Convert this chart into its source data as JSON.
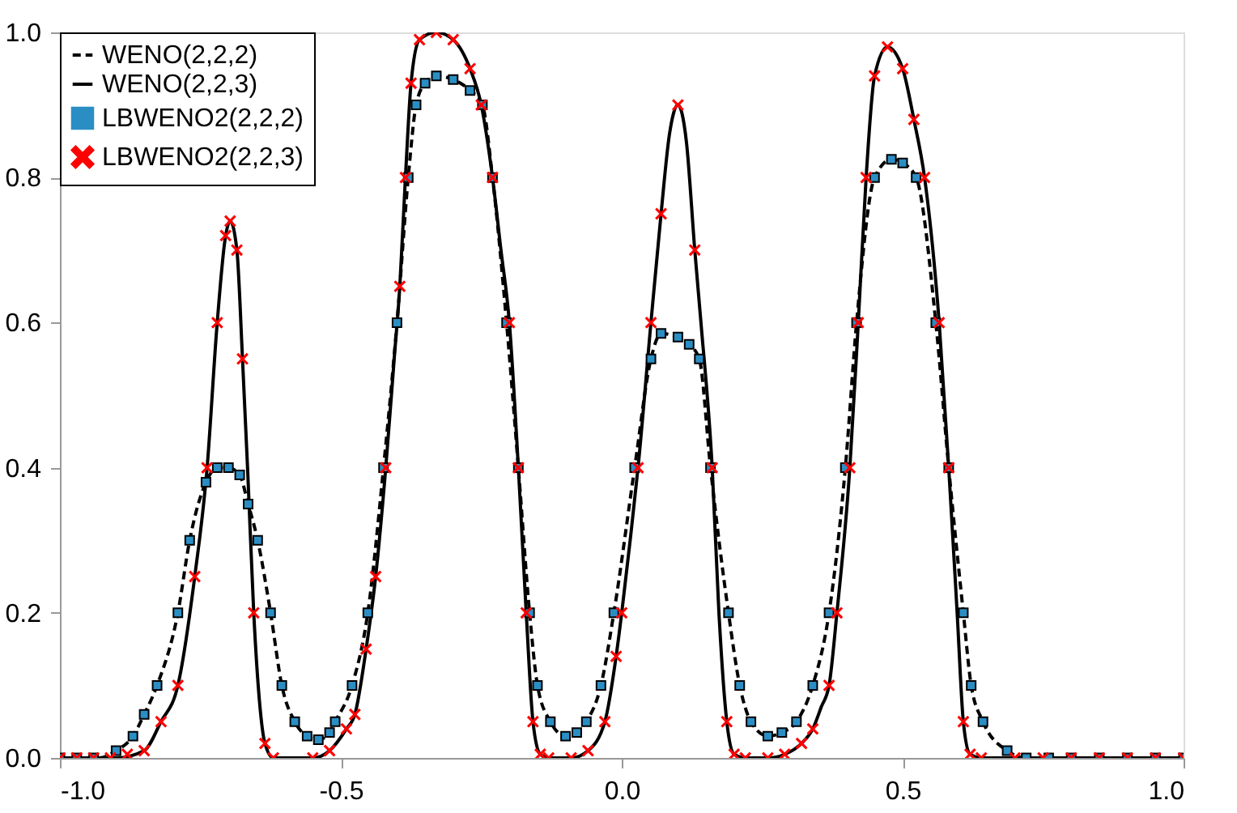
{
  "chart_data": {
    "type": "line",
    "legend": "top left",
    "grid": false,
    "xlim": [
      -1.0,
      1.0
    ],
    "ylim": [
      0.0,
      1.0
    ],
    "xticks": [
      {
        "value": -1.0,
        "label": "-1.0"
      },
      {
        "value": -0.5,
        "label": "-0.5"
      },
      {
        "value": 0.0,
        "label": "0.0"
      },
      {
        "value": 0.5,
        "label": "0.5"
      },
      {
        "value": 1.0,
        "label": "1.0"
      }
    ],
    "yticks": [
      {
        "value": 0.0,
        "label": "0.0"
      },
      {
        "value": 0.2,
        "label": "0.2"
      },
      {
        "value": 0.4,
        "label": "0.4"
      },
      {
        "value": 0.6,
        "label": "0.6"
      },
      {
        "value": 0.8,
        "label": "0.8"
      },
      {
        "value": 1.0,
        "label": "1.0"
      }
    ],
    "series": [
      {
        "name": "WENO(2,2,2)",
        "line_style": "dashed",
        "marker": "none",
        "color": "#000000",
        "x": [
          -1.0,
          -0.93,
          -0.9,
          -0.87,
          -0.85,
          -0.827,
          -0.79,
          -0.769,
          -0.74,
          -0.72,
          -0.7,
          -0.68,
          -0.665,
          -0.648,
          -0.625,
          -0.605,
          -0.582,
          -0.56,
          -0.54,
          -0.52,
          -0.51,
          -0.48,
          -0.452,
          -0.424,
          -0.4,
          -0.38,
          -0.366,
          -0.35,
          -0.33,
          -0.3,
          -0.27,
          -0.248,
          -0.23,
          -0.205,
          -0.184,
          -0.164,
          -0.15,
          -0.127,
          -0.1,
          -0.08,
          -0.063,
          -0.037,
          -0.014,
          0.023,
          0.052,
          0.07,
          0.1,
          0.12,
          0.138,
          0.158,
          0.19,
          0.21,
          0.23,
          0.26,
          0.285,
          0.311,
          0.34,
          0.369,
          0.398,
          0.418,
          0.45,
          0.48,
          0.5,
          0.524,
          0.559,
          0.582,
          0.608,
          0.622,
          0.643,
          0.686,
          0.72,
          1.0
        ],
        "values": [
          0,
          0,
          0.01,
          0.03,
          0.06,
          0.1,
          0.2,
          0.3,
          0.38,
          0.4,
          0.4,
          0.39,
          0.35,
          0.3,
          0.2,
          0.1,
          0.05,
          0.03,
          0.025,
          0.035,
          0.05,
          0.1,
          0.2,
          0.4,
          0.6,
          0.8,
          0.9,
          0.93,
          0.94,
          0.935,
          0.92,
          0.9,
          0.8,
          0.6,
          0.4,
          0.2,
          0.1,
          0.05,
          0.03,
          0.035,
          0.05,
          0.1,
          0.2,
          0.4,
          0.55,
          0.585,
          0.58,
          0.57,
          0.55,
          0.4,
          0.2,
          0.1,
          0.05,
          0.03,
          0.035,
          0.05,
          0.1,
          0.2,
          0.4,
          0.6,
          0.8,
          0.825,
          0.82,
          0.8,
          0.6,
          0.4,
          0.2,
          0.1,
          0.05,
          0.01,
          0,
          0
        ]
      },
      {
        "name": "WENO(2,2,3)",
        "line_style": "solid",
        "marker": "none",
        "color": "#000000",
        "x": [
          -1.0,
          -0.9,
          -0.85,
          -0.82,
          -0.79,
          -0.76,
          -0.738,
          -0.72,
          -0.705,
          -0.697,
          -0.685,
          -0.675,
          -0.666,
          -0.655,
          -0.645,
          -0.635,
          -0.62,
          -0.55,
          -0.52,
          -0.49,
          -0.475,
          -0.455,
          -0.438,
          -0.42,
          -0.405,
          -0.395,
          -0.385,
          -0.375,
          -0.36,
          -0.33,
          -0.3,
          -0.27,
          -0.25,
          -0.23,
          -0.215,
          -0.2,
          -0.184,
          -0.17,
          -0.158,
          -0.145,
          -0.13,
          -0.09,
          -0.06,
          -0.03,
          -0.01,
          0.0,
          0.015,
          0.029,
          0.052,
          0.07,
          0.085,
          0.1,
          0.115,
          0.13,
          0.141,
          0.161,
          0.173,
          0.187,
          0.2,
          0.22,
          0.26,
          0.29,
          0.32,
          0.34,
          0.355,
          0.369,
          0.383,
          0.406,
          0.421,
          0.435,
          0.45,
          0.473,
          0.5,
          0.52,
          0.539,
          0.565,
          0.582,
          0.597,
          0.608,
          0.62,
          0.64,
          1.0
        ],
        "values": [
          0,
          0,
          0.01,
          0.05,
          0.1,
          0.25,
          0.4,
          0.6,
          0.72,
          0.74,
          0.7,
          0.55,
          0.4,
          0.2,
          0.08,
          0.02,
          0,
          0,
          0.01,
          0.04,
          0.06,
          0.15,
          0.25,
          0.4,
          0.55,
          0.65,
          0.8,
          0.93,
          0.99,
          1.0,
          0.99,
          0.95,
          0.9,
          0.8,
          0.7,
          0.6,
          0.4,
          0.2,
          0.05,
          0.005,
          0,
          0,
          0.01,
          0.05,
          0.14,
          0.2,
          0.3,
          0.4,
          0.6,
          0.75,
          0.86,
          0.9,
          0.85,
          0.7,
          0.6,
          0.4,
          0.2,
          0.05,
          0.005,
          0,
          0,
          0.005,
          0.02,
          0.04,
          0.07,
          0.1,
          0.2,
          0.4,
          0.6,
          0.8,
          0.94,
          0.98,
          0.95,
          0.88,
          0.8,
          0.6,
          0.4,
          0.2,
          0.05,
          0.005,
          0,
          0
        ]
      },
      {
        "name": "LBWENO2(2,2,2)",
        "type": "scatter",
        "marker": "square",
        "color": "#2a8ec4",
        "x": [
          -1.0,
          -0.97,
          -0.94,
          -0.9,
          -0.87,
          -0.85,
          -0.827,
          -0.79,
          -0.769,
          -0.74,
          -0.72,
          -0.7,
          -0.68,
          -0.665,
          -0.648,
          -0.625,
          -0.605,
          -0.582,
          -0.56,
          -0.54,
          -0.52,
          -0.51,
          -0.48,
          -0.452,
          -0.424,
          -0.4,
          -0.38,
          -0.366,
          -0.35,
          -0.33,
          -0.3,
          -0.27,
          -0.248,
          -0.23,
          -0.205,
          -0.184,
          -0.164,
          -0.15,
          -0.127,
          -0.1,
          -0.08,
          -0.063,
          -0.037,
          -0.014,
          0.023,
          0.052,
          0.07,
          0.1,
          0.12,
          0.138,
          0.158,
          0.19,
          0.21,
          0.23,
          0.26,
          0.285,
          0.311,
          0.34,
          0.369,
          0.398,
          0.418,
          0.45,
          0.48,
          0.5,
          0.524,
          0.559,
          0.582,
          0.608,
          0.622,
          0.643,
          0.686,
          0.72,
          0.76,
          0.8,
          0.85,
          0.9,
          0.95,
          1.0
        ],
        "values": [
          0,
          0,
          0,
          0.01,
          0.03,
          0.06,
          0.1,
          0.2,
          0.3,
          0.38,
          0.4,
          0.4,
          0.39,
          0.35,
          0.3,
          0.2,
          0.1,
          0.05,
          0.03,
          0.025,
          0.035,
          0.05,
          0.1,
          0.2,
          0.4,
          0.6,
          0.8,
          0.9,
          0.93,
          0.94,
          0.935,
          0.92,
          0.9,
          0.8,
          0.6,
          0.4,
          0.2,
          0.1,
          0.05,
          0.03,
          0.035,
          0.05,
          0.1,
          0.2,
          0.4,
          0.55,
          0.585,
          0.58,
          0.57,
          0.55,
          0.4,
          0.2,
          0.1,
          0.05,
          0.03,
          0.035,
          0.05,
          0.1,
          0.2,
          0.4,
          0.6,
          0.8,
          0.825,
          0.82,
          0.8,
          0.6,
          0.4,
          0.2,
          0.1,
          0.05,
          0.01,
          0,
          0,
          0,
          0,
          0,
          0,
          0
        ]
      },
      {
        "name": "LBWENO2(2,2,3)",
        "type": "scatter",
        "marker": "cross",
        "color": "#ff0000",
        "x": [
          -1.0,
          -0.97,
          -0.94,
          -0.91,
          -0.88,
          -0.85,
          -0.82,
          -0.79,
          -0.76,
          -0.738,
          -0.72,
          -0.705,
          -0.697,
          -0.685,
          -0.675,
          -0.655,
          -0.635,
          -0.62,
          -0.55,
          -0.52,
          -0.49,
          -0.475,
          -0.455,
          -0.438,
          -0.42,
          -0.395,
          -0.385,
          -0.375,
          -0.36,
          -0.33,
          -0.3,
          -0.27,
          -0.25,
          -0.23,
          -0.2,
          -0.184,
          -0.17,
          -0.158,
          -0.145,
          -0.13,
          -0.09,
          -0.06,
          -0.03,
          -0.01,
          0.0,
          0.029,
          0.052,
          0.07,
          0.1,
          0.13,
          0.161,
          0.187,
          0.2,
          0.22,
          0.26,
          0.29,
          0.32,
          0.34,
          0.369,
          0.383,
          0.406,
          0.421,
          0.435,
          0.45,
          0.473,
          0.5,
          0.52,
          0.539,
          0.565,
          0.582,
          0.608,
          0.62,
          0.64,
          0.7,
          0.75,
          0.8,
          0.85,
          0.9,
          0.95,
          1.0
        ],
        "values": [
          0,
          0,
          0,
          0,
          0.005,
          0.01,
          0.05,
          0.1,
          0.25,
          0.4,
          0.6,
          0.72,
          0.74,
          0.7,
          0.55,
          0.2,
          0.02,
          0,
          0,
          0.01,
          0.04,
          0.06,
          0.15,
          0.25,
          0.4,
          0.65,
          0.8,
          0.93,
          0.99,
          1.0,
          0.99,
          0.95,
          0.9,
          0.8,
          0.6,
          0.4,
          0.2,
          0.05,
          0.005,
          0,
          0,
          0.01,
          0.05,
          0.14,
          0.2,
          0.4,
          0.6,
          0.75,
          0.9,
          0.7,
          0.4,
          0.05,
          0.005,
          0,
          0,
          0.005,
          0.02,
          0.04,
          0.1,
          0.2,
          0.4,
          0.6,
          0.8,
          0.94,
          0.98,
          0.95,
          0.88,
          0.8,
          0.6,
          0.4,
          0.05,
          0.005,
          0,
          0,
          0,
          0,
          0,
          0,
          0,
          0
        ]
      }
    ]
  }
}
